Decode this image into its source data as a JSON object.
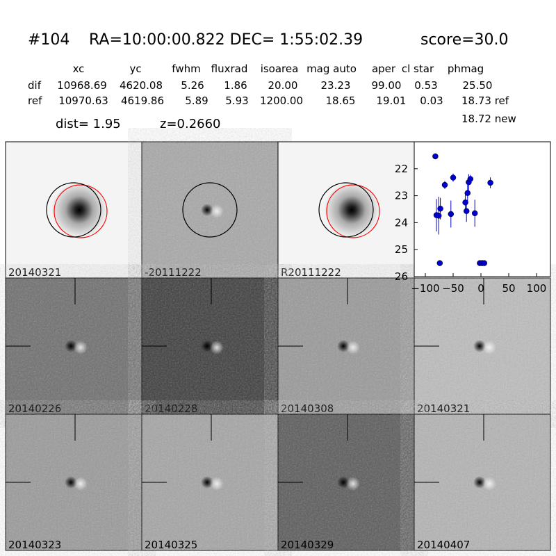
{
  "header": {
    "id": "#104",
    "coords": "RA=10:00:00.822 DEC= 1:55:02.39",
    "score": "score=30.0"
  },
  "table": {
    "columns": [
      "xc",
      "yc",
      "fwhm",
      "fluxrad",
      "isoarea",
      "mag auto",
      "aper",
      "cl star",
      "phmag"
    ],
    "rows": [
      {
        "label": "dif",
        "cells": [
          "10968.69",
          "4620.08",
          "5.26",
          "1.86",
          "20.00",
          "23.23",
          "99.00",
          "0.53",
          "25.50"
        ]
      },
      {
        "label": "ref",
        "cells": [
          "10970.63",
          "4619.86",
          "5.89",
          "5.93",
          "1200.00",
          "18.65",
          "19.01",
          "0.03",
          "18.73 ref"
        ]
      }
    ],
    "extra": "18.72 new",
    "dist": "dist=  1.95",
    "z": "z=0.2660"
  },
  "panels": [
    "20140321",
    "-20111222",
    "R20111222",
    "20140226",
    "20140228",
    "20140308",
    "20140321",
    "20140323",
    "20140325",
    "20140329",
    "20140407"
  ],
  "chart_data": {
    "type": "scatter",
    "color": "#0000cc",
    "highlight_color": "#ff0000",
    "x": [
      -82,
      -80,
      -76,
      -73,
      -74,
      -65,
      -54,
      -50,
      -28,
      -26,
      -24,
      -22,
      -19,
      -11,
      -2,
      2,
      6,
      17
    ],
    "values": [
      21.54,
      23.72,
      23.74,
      23.48,
      25.5,
      22.6,
      23.68,
      22.33,
      23.25,
      23.57,
      22.9,
      22.5,
      22.38,
      23.65,
      25.5,
      25.5,
      25.5,
      22.52
    ],
    "errors": [
      0.1,
      0.6,
      0.7,
      0.4,
      0.1,
      0.15,
      0.5,
      0.15,
      0.35,
      0.4,
      0.3,
      0.3,
      0.15,
      0.5,
      0.05,
      0.05,
      0.05,
      0.2
    ],
    "xlim": [
      -120,
      125
    ],
    "ylim": [
      26,
      21
    ],
    "xticks": [
      {
        "value": -100,
        "label": "−100"
      },
      {
        "value": -50,
        "label": "−50"
      },
      0,
      50,
      100
    ],
    "yticks": [
      22,
      23,
      24,
      25,
      26
    ]
  }
}
